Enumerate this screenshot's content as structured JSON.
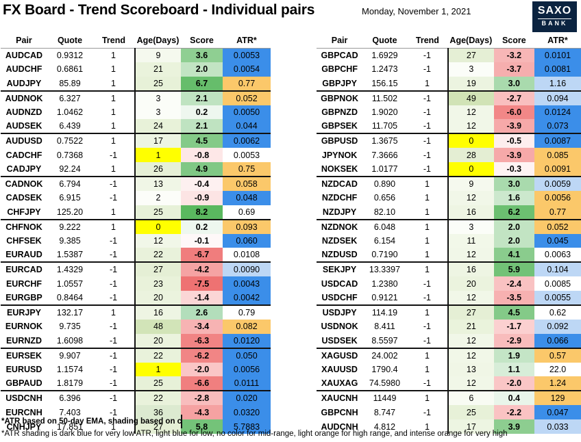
{
  "title": "FX Board - Trend Scoreboard - Individual pairs",
  "date": "Monday, November 1, 2021",
  "logo": {
    "line1": "SAXO",
    "line2": "BANK"
  },
  "headers": {
    "pair": "Pair",
    "quote": "Quote",
    "trend": "Trend",
    "age": "Age(Days)",
    "score": "Score",
    "atr": "ATR*"
  },
  "left_rows": [
    {
      "pair": "AUDCAD",
      "quote": "0.9312",
      "trend": "1",
      "age": "9",
      "score": "3.6",
      "atr": "0.0053",
      "age_bg": "#f5f9ee",
      "score_bg": "#8fcf92",
      "atr_bg": "#3b8ee9"
    },
    {
      "pair": "AUDCHF",
      "quote": "0.6861",
      "trend": "1",
      "age": "21",
      "score": "2.0",
      "atr": "0.0054",
      "age_bg": "#eaf3dc",
      "score_bg": "#c2e4c3",
      "atr_bg": "#3b8ee9"
    },
    {
      "pair": "AUDJPY",
      "quote": "85.89",
      "trend": "1",
      "age": "25",
      "score": "6.7",
      "atr": "0.77",
      "age_bg": "#e7f1d8",
      "score_bg": "#66bd6b",
      "atr_bg": "#fbc86a"
    },
    {
      "pair": "AUDNOK",
      "quote": "6.327",
      "trend": "1",
      "age": "3",
      "score": "2.1",
      "atr": "0.052",
      "age_bg": "#fbfdf8",
      "score_bg": "#bfe3c1",
      "atr_bg": "#fbc86a"
    },
    {
      "pair": "AUDNZD",
      "quote": "1.0462",
      "trend": "1",
      "age": "3",
      "score": "0.2",
      "atr": "0.0050",
      "age_bg": "#fbfdf8",
      "score_bg": "#eef7ef",
      "atr_bg": "#3b8ee9"
    },
    {
      "pair": "AUDSEK",
      "quote": "6.439",
      "trend": "1",
      "age": "24",
      "score": "2.1",
      "atr": "0.044",
      "age_bg": "#e8f2d9",
      "score_bg": "#bfe3c1",
      "atr_bg": "#3b8ee9"
    },
    {
      "pair": "AUDUSD",
      "quote": "0.7522",
      "trend": "1",
      "age": "17",
      "score": "4.5",
      "atr": "0.0062",
      "age_bg": "#edf5e2",
      "score_bg": "#84ca88",
      "atr_bg": "#3b8ee9"
    },
    {
      "pair": "CADCHF",
      "quote": "0.7368",
      "trend": "-1",
      "age": "1",
      "score": "-0.8",
      "atr": "0.0053",
      "age_bg": "#ffff00",
      "score_bg": "#fde7e7",
      "atr_bg": "#ffffff"
    },
    {
      "pair": "CADJPY",
      "quote": "92.24",
      "trend": "1",
      "age": "26",
      "score": "4.9",
      "atr": "0.75",
      "age_bg": "#e6f0d6",
      "score_bg": "#80c885",
      "atr_bg": "#fbc86a"
    },
    {
      "pair": "CADNOK",
      "quote": "6.794",
      "trend": "-1",
      "age": "13",
      "score": "-0.4",
      "atr": "0.058",
      "age_bg": "#f0f6e6",
      "score_bg": "#fdf0f0",
      "atr_bg": "#fbc86a"
    },
    {
      "pair": "CADSEK",
      "quote": "6.915",
      "trend": "-1",
      "age": "2",
      "score": "-0.9",
      "atr": "0.048",
      "age_bg": "#fcfdf9",
      "score_bg": "#fce4e4",
      "atr_bg": "#3b8ee9"
    },
    {
      "pair": "CHFJPY",
      "quote": "125.20",
      "trend": "1",
      "age": "25",
      "score": "8.2",
      "atr": "0.69",
      "age_bg": "#e7f1d8",
      "score_bg": "#5ab85f",
      "atr_bg": "#ffffff"
    },
    {
      "pair": "CHFNOK",
      "quote": "9.222",
      "trend": "1",
      "age": "0",
      "score": "0.2",
      "atr": "0.093",
      "age_bg": "#ffff00",
      "score_bg": "#eef7ef",
      "atr_bg": "#fbc86a"
    },
    {
      "pair": "CHFSEK",
      "quote": "9.385",
      "trend": "-1",
      "age": "12",
      "score": "-0.1",
      "atr": "0.060",
      "age_bg": "#f1f7e8",
      "score_bg": "#fef8f8",
      "atr_bg": "#3b8ee9"
    },
    {
      "pair": "EURAUD",
      "quote": "1.5387",
      "trend": "-1",
      "age": "22",
      "score": "-6.7",
      "atr": "0.0108",
      "age_bg": "#e9f2db",
      "score_bg": "#f07d7d",
      "atr_bg": "#ffffff"
    },
    {
      "pair": "EURCAD",
      "quote": "1.4329",
      "trend": "-1",
      "age": "27",
      "score": "-4.2",
      "atr": "0.0090",
      "age_bg": "#e5efd5",
      "score_bg": "#f5a3a3",
      "atr_bg": "#bdd7f5"
    },
    {
      "pair": "EURCHF",
      "quote": "1.0557",
      "trend": "-1",
      "age": "23",
      "score": "-7.5",
      "atr": "0.0043",
      "age_bg": "#e9f2da",
      "score_bg": "#ee7272",
      "atr_bg": "#3b8ee9"
    },
    {
      "pair": "EURGBP",
      "quote": "0.8464",
      "trend": "-1",
      "age": "20",
      "score": "-1.4",
      "atr": "0.0042",
      "age_bg": "#ebf3de",
      "score_bg": "#fbd6d6",
      "atr_bg": "#3b8ee9"
    },
    {
      "pair": "EURJPY",
      "quote": "132.17",
      "trend": "1",
      "age": "16",
      "score": "2.6",
      "atr": "0.79",
      "age_bg": "#eef5e3",
      "score_bg": "#b3debb",
      "atr_bg": "#ffffff"
    },
    {
      "pair": "EURNOK",
      "quote": "9.735",
      "trend": "-1",
      "age": "48",
      "score": "-3.4",
      "atr": "0.082",
      "age_bg": "#d2e4b8",
      "score_bg": "#f7b3b3",
      "atr_bg": "#fbc86a"
    },
    {
      "pair": "EURNZD",
      "quote": "1.6098",
      "trend": "-1",
      "age": "20",
      "score": "-6.3",
      "atr": "0.0120",
      "age_bg": "#ebf3de",
      "score_bg": "#f18484",
      "atr_bg": "#3b8ee9"
    },
    {
      "pair": "EURSEK",
      "quote": "9.907",
      "trend": "-1",
      "age": "22",
      "score": "-6.2",
      "atr": "0.050",
      "age_bg": "#e9f2db",
      "score_bg": "#f18585",
      "atr_bg": "#3b8ee9"
    },
    {
      "pair": "EURUSD",
      "quote": "1.1574",
      "trend": "-1",
      "age": "1",
      "score": "-2.0",
      "atr": "0.0056",
      "age_bg": "#ffff00",
      "score_bg": "#fac6c6",
      "atr_bg": "#3b8ee9"
    },
    {
      "pair": "GBPAUD",
      "quote": "1.8179",
      "trend": "-1",
      "age": "25",
      "score": "-6.6",
      "atr": "0.0111",
      "age_bg": "#e7f1d8",
      "score_bg": "#f07f7f",
      "atr_bg": "#3b8ee9"
    },
    {
      "pair": "USDCNH",
      "quote": "6.396",
      "trend": "-1",
      "age": "22",
      "score": "-2.8",
      "atr": "0.020",
      "age_bg": "#e9f2db",
      "score_bg": "#f8bdbd",
      "atr_bg": "#3b8ee9"
    },
    {
      "pair": "EURCNH",
      "quote": "7.403",
      "trend": "-1",
      "age": "36",
      "score": "-4.3",
      "atr": "0.0320",
      "age_bg": "#dcead0",
      "score_bg": "#f5a2a2",
      "atr_bg": "#3b8ee9"
    },
    {
      "pair": "CNHJPY",
      "quote": "17.851",
      "trend": "1",
      "age": "27",
      "score": "5.8",
      "atr": "5.7883",
      "age_bg": "#e5efd5",
      "score_bg": "#74c379",
      "atr_bg": "#3b8ee9"
    }
  ],
  "right_rows": [
    {
      "pair": "GBPCAD",
      "quote": "1.6929",
      "trend": "-1",
      "age": "27",
      "score": "-3.2",
      "atr": "0.0101",
      "age_bg": "#e5efd5",
      "score_bg": "#f7b6b6",
      "atr_bg": "#3b8ee9"
    },
    {
      "pair": "GBPCHF",
      "quote": "1.2473",
      "trend": "-1",
      "age": "3",
      "score": "-3.7",
      "atr": "0.0081",
      "age_bg": "#fbfdf8",
      "score_bg": "#f6aeae",
      "atr_bg": "#3b8ee9"
    },
    {
      "pair": "GBPJPY",
      "quote": "156.15",
      "trend": "1",
      "age": "19",
      "score": "3.0",
      "atr": "1.16",
      "age_bg": "#ecf4e0",
      "score_bg": "#a9daad",
      "atr_bg": "#bdd7f5"
    },
    {
      "pair": "GBPNOK",
      "quote": "11.502",
      "trend": "-1",
      "age": "49",
      "score": "-2.7",
      "atr": "0.094",
      "age_bg": "#d1e3b6",
      "score_bg": "#f9bfbf",
      "atr_bg": "#bdd7f5"
    },
    {
      "pair": "GBPNZD",
      "quote": "1.9020",
      "trend": "-1",
      "age": "12",
      "score": "-6.0",
      "atr": "0.0124",
      "age_bg": "#f1f7e8",
      "score_bg": "#f28787",
      "atr_bg": "#3b8ee9"
    },
    {
      "pair": "GBPSEK",
      "quote": "11.705",
      "trend": "-1",
      "age": "12",
      "score": "-3.9",
      "atr": "0.073",
      "age_bg": "#f1f7e8",
      "score_bg": "#f6a9a9",
      "atr_bg": "#3b8ee9"
    },
    {
      "pair": "GBPUSD",
      "quote": "1.3675",
      "trend": "-1",
      "age": "0",
      "score": "-0.5",
      "atr": "0.0087",
      "age_bg": "#ffff00",
      "score_bg": "#fdeeee",
      "atr_bg": "#3b8ee9"
    },
    {
      "pair": "JPYNOK",
      "quote": "7.3666",
      "trend": "-1",
      "age": "28",
      "score": "-3.9",
      "atr": "0.085",
      "age_bg": "#e4eed3",
      "score_bg": "#f6a9a9",
      "atr_bg": "#fbc86a"
    },
    {
      "pair": "NOKSEK",
      "quote": "1.0177",
      "trend": "-1",
      "age": "0",
      "score": "-0.3",
      "atr": "0.0091",
      "age_bg": "#ffff00",
      "score_bg": "#fef3f3",
      "atr_bg": "#fbc86a"
    },
    {
      "pair": "NZDCAD",
      "quote": "0.890",
      "trend": "1",
      "age": "9",
      "score": "3.0",
      "atr": "0.0059",
      "age_bg": "#f5f9ee",
      "score_bg": "#a9daad",
      "atr_bg": "#bdd7f5"
    },
    {
      "pair": "NZDCHF",
      "quote": "0.656",
      "trend": "1",
      "age": "12",
      "score": "1.6",
      "atr": "0.0056",
      "age_bg": "#f1f7e8",
      "score_bg": "#cce8cd",
      "atr_bg": "#fbc86a"
    },
    {
      "pair": "NZDJPY",
      "quote": "82.10",
      "trend": "1",
      "age": "16",
      "score": "6.2",
      "atr": "0.77",
      "age_bg": "#eef5e3",
      "score_bg": "#6cc071",
      "atr_bg": "#fbc86a"
    },
    {
      "pair": "NZDNOK",
      "quote": "6.048",
      "trend": "1",
      "age": "3",
      "score": "2.0",
      "atr": "0.052",
      "age_bg": "#fbfdf8",
      "score_bg": "#c2e4c3",
      "atr_bg": "#fbc86a"
    },
    {
      "pair": "NZDSEK",
      "quote": "6.154",
      "trend": "1",
      "age": "11",
      "score": "2.0",
      "atr": "0.045",
      "age_bg": "#f2f8e9",
      "score_bg": "#c2e4c3",
      "atr_bg": "#3b8ee9"
    },
    {
      "pair": "NZDUSD",
      "quote": "0.7190",
      "trend": "1",
      "age": "12",
      "score": "4.1",
      "atr": "0.0063",
      "age_bg": "#f1f7e8",
      "score_bg": "#8acc8d",
      "atr_bg": "#ffffff"
    },
    {
      "pair": "SEKJPY",
      "quote": "13.3397",
      "trend": "1",
      "age": "16",
      "score": "5.9",
      "atr": "0.104",
      "age_bg": "#eef5e3",
      "score_bg": "#72c277",
      "atr_bg": "#bdd7f5"
    },
    {
      "pair": "USDCAD",
      "quote": "1.2380",
      "trend": "-1",
      "age": "20",
      "score": "-2.4",
      "atr": "0.0085",
      "age_bg": "#ebf3de",
      "score_bg": "#f9c2c2",
      "atr_bg": "#ffffff"
    },
    {
      "pair": "USDCHF",
      "quote": "0.9121",
      "trend": "-1",
      "age": "12",
      "score": "-3.5",
      "atr": "0.0055",
      "age_bg": "#f1f7e8",
      "score_bg": "#f7b1b1",
      "atr_bg": "#bdd7f5"
    },
    {
      "pair": "USDJPY",
      "quote": "114.19",
      "trend": "1",
      "age": "27",
      "score": "4.5",
      "atr": "0.62",
      "age_bg": "#e5efd5",
      "score_bg": "#84ca88",
      "atr_bg": "#ffffff"
    },
    {
      "pair": "USDNOK",
      "quote": "8.411",
      "trend": "-1",
      "age": "21",
      "score": "-1.7",
      "atr": "0.092",
      "age_bg": "#eaf3dc",
      "score_bg": "#fbd0d0",
      "atr_bg": "#bdd7f5"
    },
    {
      "pair": "USDSEK",
      "quote": "8.5597",
      "trend": "-1",
      "age": "12",
      "score": "-2.9",
      "atr": "0.066",
      "age_bg": "#f1f7e8",
      "score_bg": "#f8bcbc",
      "atr_bg": "#3b8ee9"
    },
    {
      "pair": "XAGUSD",
      "quote": "24.002",
      "trend": "1",
      "age": "12",
      "score": "1.9",
      "atr": "0.57",
      "age_bg": "#f1f7e8",
      "score_bg": "#c4e5c6",
      "atr_bg": "#fbc86a"
    },
    {
      "pair": "XAUUSD",
      "quote": "1790.4",
      "trend": "1",
      "age": "13",
      "score": "1.1",
      "atr": "22.0",
      "age_bg": "#f0f6e6",
      "score_bg": "#d7edd8",
      "atr_bg": "#ffffff"
    },
    {
      "pair": "XAUXAG",
      "quote": "74.5980",
      "trend": "-1",
      "age": "12",
      "score": "-2.0",
      "atr": "1.24",
      "age_bg": "#f1f7e8",
      "score_bg": "#fac6c6",
      "atr_bg": "#fbc86a"
    },
    {
      "pair": "XAUCNH",
      "quote": "11449",
      "trend": "1",
      "age": "6",
      "score": "0.4",
      "atr": "129",
      "age_bg": "#f8fbf3",
      "score_bg": "#e9f5ea",
      "atr_bg": "#fbc86a"
    },
    {
      "pair": "GBPCNH",
      "quote": "8.747",
      "trend": "-1",
      "age": "25",
      "score": "-2.2",
      "atr": "0.047",
      "age_bg": "#e7f1d8",
      "score_bg": "#fac3c3",
      "atr_bg": "#3b8ee9"
    },
    {
      "pair": "AUDCNH",
      "quote": "4.812",
      "trend": "1",
      "age": "17",
      "score": "3.9",
      "atr": "0.033",
      "age_bg": "#edf5e2",
      "score_bg": "#8dcd90",
      "atr_bg": "#bdd7f5"
    }
  ],
  "footnote_bold": "*ATR based on 50-day EMA, shading based on co",
  "footnote": "*ATR shading is dark blue for very low ATR, light blue for low, no color for mid-range, light orange for high range, and intense orange for very high"
}
